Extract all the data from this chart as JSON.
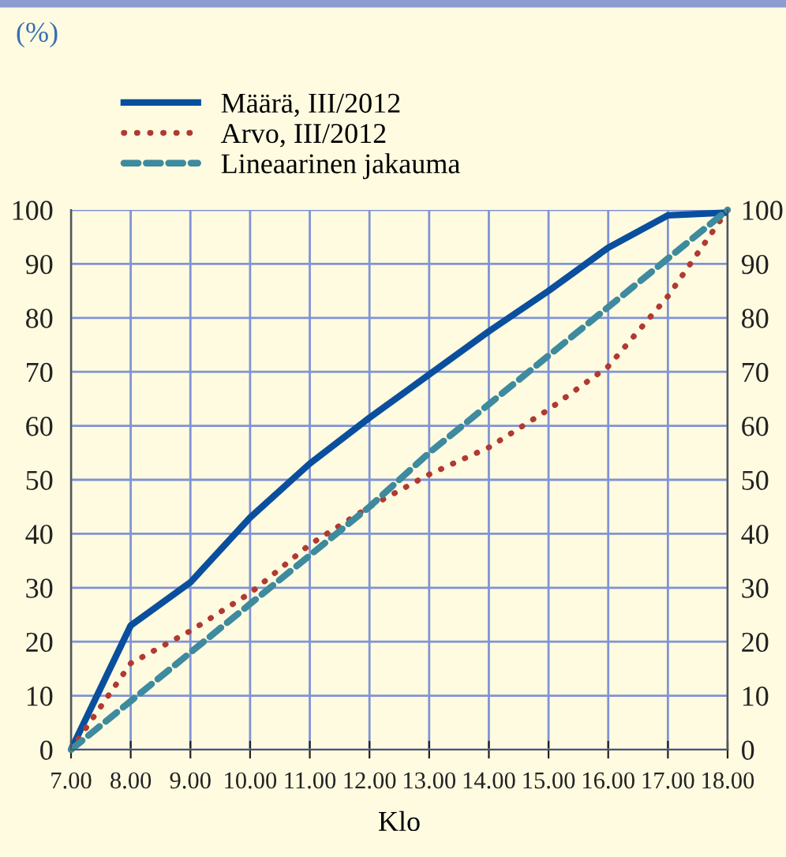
{
  "chart_data": {
    "type": "line",
    "annotations": [
      "(%)"
    ],
    "xlabel": "Klo",
    "x": [
      7,
      8,
      9,
      10,
      11,
      12,
      13,
      14,
      15,
      16,
      17,
      18
    ],
    "series": [
      {
        "name": "Määrä, III/2012",
        "color": "#0a4f9e",
        "line_style": "solid",
        "values": [
          0,
          23,
          31,
          43,
          53,
          61.5,
          69.5,
          77.5,
          85,
          93,
          99,
          99.5
        ]
      },
      {
        "name": "Arvo, III/2012",
        "color": "#b03a32",
        "line_style": "dotted",
        "values": [
          0,
          16,
          22,
          29,
          38,
          45,
          51,
          56,
          63,
          71,
          84,
          100
        ]
      },
      {
        "name": "Lineaarinen jakauma",
        "color": "#3e8a9e",
        "line_style": "dashed",
        "values": [
          0,
          9,
          18,
          27,
          36,
          45,
          55,
          64,
          73,
          82,
          91,
          100
        ]
      }
    ],
    "xlim": [
      7,
      18
    ],
    "xticks": [
      {
        "value": 7,
        "label": "7.00"
      },
      {
        "value": 8,
        "label": "8.00"
      },
      {
        "value": 9,
        "label": "9.00"
      },
      {
        "value": 10,
        "label": "10.00"
      },
      {
        "value": 11,
        "label": "11.00"
      },
      {
        "value": 12,
        "label": "12.00"
      },
      {
        "value": 13,
        "label": "13.00"
      },
      {
        "value": 14,
        "label": "14.00"
      },
      {
        "value": 15,
        "label": "15.00"
      },
      {
        "value": 16,
        "label": "16.00"
      },
      {
        "value": 17,
        "label": "17.00"
      },
      {
        "value": 18,
        "label": "18.00"
      }
    ],
    "ylim": [
      0,
      100
    ],
    "yticks": [
      0,
      10,
      20,
      30,
      40,
      50,
      60,
      70,
      80,
      90,
      100
    ],
    "y2lim": [
      0,
      100
    ],
    "y2ticks": [
      0,
      10,
      20,
      30,
      40,
      50,
      60,
      70,
      80,
      90,
      100
    ],
    "grid": true,
    "legend": "top left",
    "marker": "none"
  }
}
